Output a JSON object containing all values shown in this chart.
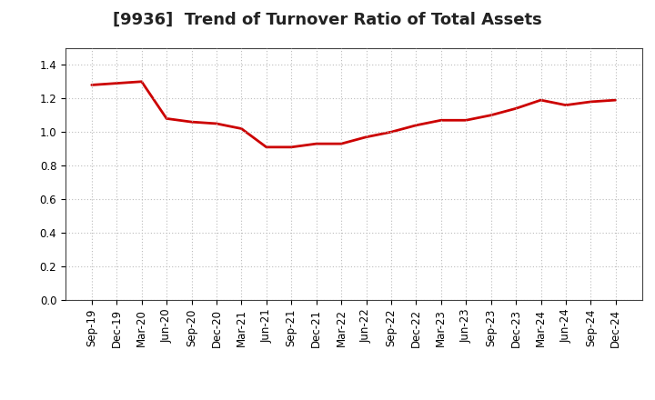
{
  "title": "[9936]  Trend of Turnover Ratio of Total Assets",
  "x_labels": [
    "Sep-19",
    "Dec-19",
    "Mar-20",
    "Jun-20",
    "Sep-20",
    "Dec-20",
    "Mar-21",
    "Jun-21",
    "Sep-21",
    "Dec-21",
    "Mar-22",
    "Jun-22",
    "Sep-22",
    "Dec-22",
    "Mar-23",
    "Jun-23",
    "Sep-23",
    "Dec-23",
    "Mar-24",
    "Jun-24",
    "Sep-24",
    "Dec-24"
  ],
  "y_values": [
    1.28,
    1.29,
    1.3,
    1.08,
    1.06,
    1.05,
    1.02,
    0.91,
    0.91,
    0.93,
    0.93,
    0.97,
    1.0,
    1.04,
    1.07,
    1.07,
    1.1,
    1.14,
    1.19,
    1.16,
    1.18,
    1.19
  ],
  "line_color": "#cc0000",
  "line_width": 2.0,
  "ylim": [
    0.0,
    1.5
  ],
  "yticks": [
    0.0,
    0.2,
    0.4,
    0.6,
    0.8,
    1.0,
    1.2,
    1.4
  ],
  "grid_color": "#bbbbbb",
  "background_color": "#ffffff",
  "title_fontsize": 13,
  "tick_fontsize": 8.5
}
